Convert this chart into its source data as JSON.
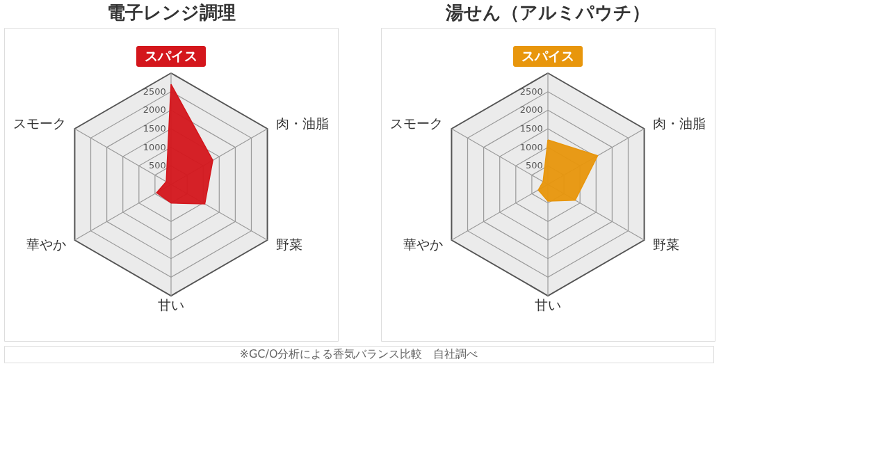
{
  "chart_data": [
    {
      "type": "radar",
      "title": "電子レンジ調理",
      "categories": [
        "スパイス",
        "肉・油脂",
        "野菜",
        "甘い",
        "華やか",
        "スモーク"
      ],
      "series": [
        {
          "color": "#d4161c",
          "values": [
            2700,
            1300,
            1050,
            500,
            450,
            150
          ]
        }
      ],
      "ylim": [
        0,
        3000
      ],
      "yticks": [
        500,
        1000,
        1500,
        2000,
        2500
      ],
      "grid": true,
      "annotations": [
        "※GC/O分析による香気バランス比較　自社調べ"
      ]
    },
    {
      "type": "radar",
      "title": "湯せん（アルミパウチ）",
      "categories": [
        "スパイス",
        "肉・油脂",
        "野菜",
        "甘い",
        "華やか",
        "スモーク"
      ],
      "series": [
        {
          "color": "#e8960c",
          "values": [
            1200,
            1550,
            850,
            450,
            300,
            150
          ]
        }
      ],
      "ylim": [
        0,
        3000
      ],
      "yticks": [
        500,
        1000,
        1500,
        2000,
        2500
      ],
      "grid": true
    }
  ]
}
